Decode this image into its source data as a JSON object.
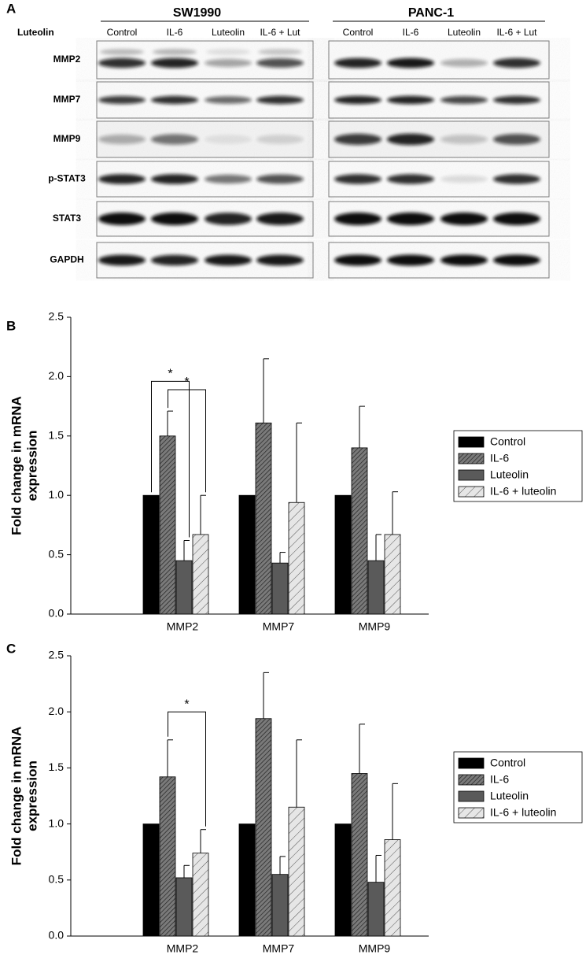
{
  "blot": {
    "panel": "A",
    "row_header": "Luteolin",
    "groups": [
      {
        "name": "SW1990",
        "columns": [
          "Control",
          "IL-6",
          "Luteolin",
          "IL-6 + Lut"
        ]
      },
      {
        "name": "PANC-1",
        "columns": [
          "Control",
          "IL-6",
          "Luteolin",
          "IL-6 + Lut"
        ]
      }
    ],
    "rows": [
      "MMP2",
      "MMP7",
      "MMP9",
      "p-STAT3",
      "STAT3",
      "GAPDH"
    ]
  },
  "chart_data": [
    {
      "type": "bar",
      "panel": "B",
      "ylabel": [
        "Fold change in mRNA",
        "expression"
      ],
      "categories": [
        "MMP2",
        "MMP7",
        "MMP9"
      ],
      "series": [
        {
          "name": "Control",
          "color": "#000000",
          "hatch": null,
          "values": [
            1,
            1,
            1
          ],
          "errors": [
            0,
            0,
            0
          ]
        },
        {
          "name": "IL-6",
          "color": "#7a7a7a",
          "hatch": "dense",
          "values": [
            1.5,
            1.61,
            1.4
          ],
          "errors": [
            0.21,
            0.54,
            0.35
          ]
        },
        {
          "name": "Luteolin",
          "color": "#5a5a5a",
          "hatch": null,
          "values": [
            0.45,
            0.43,
            0.45
          ],
          "errors": [
            0.17,
            0.09,
            0.22
          ]
        },
        {
          "name": "IL-6 + luteolin",
          "color": "#e6e6e6",
          "hatch": "sparse",
          "values": [
            0.67,
            0.94,
            0.67
          ],
          "errors": [
            0.33,
            0.67,
            0.36
          ]
        }
      ],
      "ylim": [
        0,
        2.5
      ],
      "yticks": [
        {
          "value": 0,
          "label": "0.0"
        },
        {
          "value": 0.5,
          "label": "0.5"
        },
        {
          "value": 1,
          "label": "1.0"
        },
        {
          "value": 1.5,
          "label": "1.5"
        },
        {
          "value": 2,
          "label": "2.0"
        },
        {
          "value": 2.5,
          "label": "2.5"
        }
      ],
      "legend": "right",
      "annotations": [
        {
          "text": "*",
          "category": "MMP2",
          "from": "Control",
          "to": "Luteolin"
        },
        {
          "text": "*",
          "category": "MMP2",
          "from": "IL-6",
          "to": "IL-6 + luteolin"
        }
      ]
    },
    {
      "type": "bar",
      "panel": "C",
      "ylabel": [
        "Fold change in mRNA",
        "expression"
      ],
      "categories": [
        "MMP2",
        "MMP7",
        "MMP9"
      ],
      "series": [
        {
          "name": "Control",
          "color": "#000000",
          "hatch": null,
          "values": [
            1,
            1,
            1
          ],
          "errors": [
            0,
            0,
            0
          ]
        },
        {
          "name": "IL-6",
          "color": "#7a7a7a",
          "hatch": "dense",
          "values": [
            1.42,
            1.94,
            1.45
          ],
          "errors": [
            0.33,
            0.41,
            0.44
          ]
        },
        {
          "name": "Luteolin",
          "color": "#5a5a5a",
          "hatch": null,
          "values": [
            0.52,
            0.55,
            0.48
          ],
          "errors": [
            0.11,
            0.16,
            0.24
          ]
        },
        {
          "name": "IL-6 + luteolin",
          "color": "#e6e6e6",
          "hatch": "sparse",
          "values": [
            0.74,
            1.15,
            0.86
          ],
          "errors": [
            0.21,
            0.6,
            0.5
          ]
        }
      ],
      "ylim": [
        0,
        2.5
      ],
      "yticks": [
        {
          "value": 0,
          "label": "0.0"
        },
        {
          "value": 0.5,
          "label": "0.5"
        },
        {
          "value": 1,
          "label": "1.0"
        },
        {
          "value": 1.5,
          "label": "1.5"
        },
        {
          "value": 2,
          "label": "2.0"
        },
        {
          "value": 2.5,
          "label": "2.5"
        }
      ],
      "legend": "right",
      "annotations": [
        {
          "text": "*",
          "category": "MMP2",
          "from": "IL-6",
          "to": "IL-6 + luteolin"
        }
      ]
    }
  ]
}
